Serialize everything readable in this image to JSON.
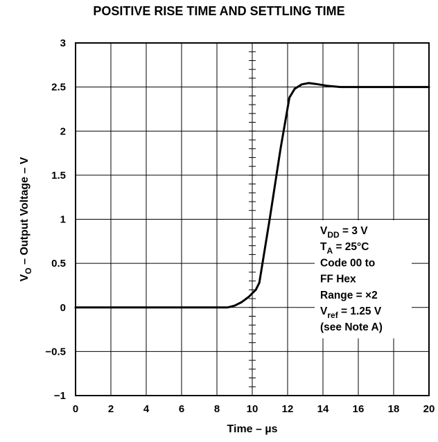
{
  "chart_data": {
    "type": "line",
    "title": "POSITIVE RISE TIME AND SETTLING TIME",
    "xlabel": "Time – µs",
    "ylabel_main": "V",
    "ylabel_sub": "O",
    "ylabel_rest": " – Output Voltage – V",
    "xlim": [
      0,
      20
    ],
    "ylim": [
      -1,
      3
    ],
    "xticks": [
      0,
      2,
      4,
      6,
      8,
      10,
      12,
      14,
      16,
      18,
      20
    ],
    "xtick_labels": [
      "0",
      "2",
      "4",
      "6",
      "8",
      "10",
      "12",
      "14",
      "16",
      "18",
      "20"
    ],
    "yticks": [
      -1,
      -0.5,
      0,
      0.5,
      1,
      1.5,
      2,
      2.5,
      3
    ],
    "ytick_labels": [
      "−1",
      "−0.5",
      "0",
      "0.5",
      "1",
      "1.5",
      "2",
      "2.5",
      "3"
    ],
    "grid": true,
    "series": [
      {
        "x": [
          0,
          8.6,
          9.0,
          9.4,
          9.8,
          10.2,
          10.4,
          11.0,
          11.6,
          12.1,
          12.4,
          12.8,
          13.2,
          13.6,
          14.2,
          15.0,
          16.0,
          20
        ],
        "y": [
          0,
          0,
          0.02,
          0.06,
          0.12,
          0.2,
          0.28,
          1.02,
          1.8,
          2.38,
          2.48,
          2.53,
          2.545,
          2.535,
          2.515,
          2.5,
          2.5,
          2.5
        ]
      }
    ],
    "annotations": [
      {
        "main": "V",
        "sub": "DD",
        "rest": " = 3 V"
      },
      {
        "main": "T",
        "sub": "A",
        "rest": " = 25°C"
      },
      {
        "main": "Code 00 to",
        "sub": "",
        "rest": ""
      },
      {
        "main": "FF Hex",
        "sub": "",
        "rest": ""
      },
      {
        "main": "Range = ×2",
        "sub": "",
        "rest": ""
      },
      {
        "main": "V",
        "sub": "ref",
        "rest": " = 1.25 V"
      },
      {
        "main": "(see Note A)",
        "sub": "",
        "rest": ""
      }
    ]
  }
}
